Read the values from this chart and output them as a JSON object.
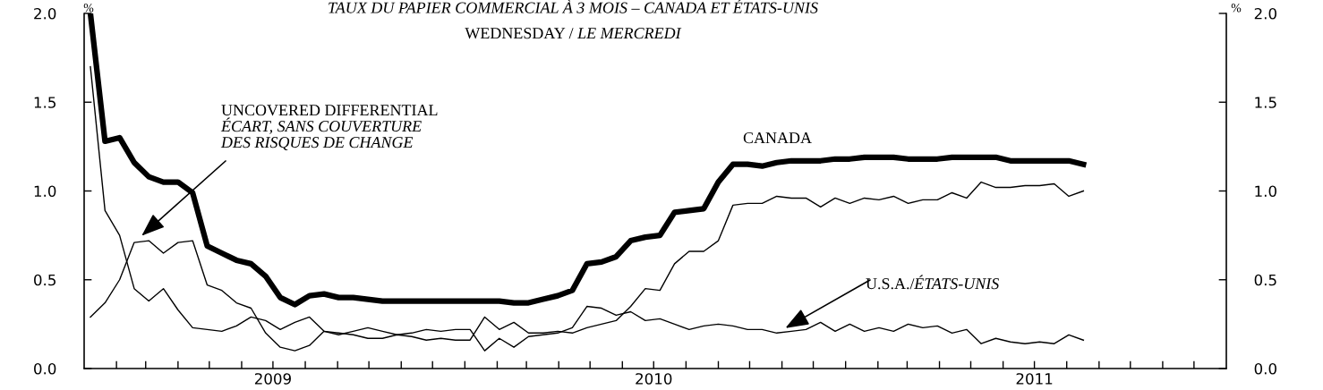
{
  "chart_data": {
    "type": "line",
    "title": "TAUX DU PAPIER COMMERCIAL À 3 MOIS – CANADA ET ÉTATS-UNIS",
    "subtitle": "WEDNESDAY / LE MERCREDI",
    "ylabel": "%",
    "y2label": "%",
    "x": [
      "2009-01-07",
      "2009-01-21",
      "2009-02-04",
      "2009-02-18",
      "2009-03-04",
      "2009-03-18",
      "2009-04-01",
      "2009-04-15",
      "2009-04-29",
      "2009-05-13",
      "2009-05-27",
      "2009-06-10",
      "2009-06-24",
      "2009-07-08",
      "2009-07-22",
      "2009-08-05",
      "2009-08-19",
      "2009-09-02",
      "2009-09-16",
      "2009-09-30",
      "2009-10-14",
      "2009-10-28",
      "2009-11-11",
      "2009-11-25",
      "2009-12-09",
      "2009-12-23",
      "2010-01-06",
      "2010-01-20",
      "2010-02-03",
      "2010-02-17",
      "2010-03-03",
      "2010-03-17",
      "2010-03-31",
      "2010-04-14",
      "2010-04-28",
      "2010-05-12",
      "2010-05-26",
      "2010-06-09",
      "2010-06-23",
      "2010-07-07",
      "2010-07-21",
      "2010-08-04",
      "2010-08-18",
      "2010-09-01",
      "2010-09-15",
      "2010-09-29",
      "2010-10-13",
      "2010-10-27",
      "2010-11-10",
      "2010-11-24",
      "2010-12-08",
      "2010-12-22",
      "2011-01-05",
      "2011-01-19",
      "2011-02-02",
      "2011-02-16",
      "2011-03-02",
      "2011-03-16",
      "2011-03-30",
      "2011-04-13",
      "2011-04-27",
      "2011-05-11",
      "2011-05-25",
      "2011-06-08",
      "2011-06-22",
      "2011-07-06",
      "2011-07-20",
      "2011-08-03",
      "2011-08-17"
    ],
    "series": [
      {
        "name": "CANADA",
        "color": "#000000",
        "values": [
          2.0,
          1.28,
          1.3,
          1.16,
          1.08,
          1.05,
          1.05,
          0.99,
          0.69,
          0.65,
          0.61,
          0.59,
          0.52,
          0.4,
          0.36,
          0.41,
          0.42,
          0.4,
          0.4,
          0.39,
          0.38,
          0.38,
          0.38,
          0.38,
          0.38,
          0.38,
          0.38,
          0.38,
          0.38,
          0.37,
          0.37,
          0.39,
          0.41,
          0.44,
          0.59,
          0.6,
          0.63,
          0.72,
          0.74,
          0.75,
          0.88,
          0.89,
          0.9,
          1.05,
          1.15,
          1.15,
          1.14,
          1.16,
          1.17,
          1.17,
          1.17,
          1.18,
          1.18,
          1.19,
          1.19,
          1.19,
          1.18,
          1.18,
          1.18,
          1.19,
          1.19,
          1.19,
          1.19,
          1.17,
          1.17,
          1.17,
          1.17,
          1.17,
          1.15
        ]
      },
      {
        "name": "U.S.A./ÉTATS-UNIS",
        "color": "#000000",
        "values": [
          1.7,
          0.89,
          0.75,
          0.45,
          0.38,
          0.45,
          0.33,
          0.23,
          0.22,
          0.21,
          0.24,
          0.29,
          0.27,
          0.22,
          0.26,
          0.29,
          0.21,
          0.19,
          0.21,
          0.23,
          0.21,
          0.19,
          0.2,
          0.22,
          0.21,
          0.22,
          0.22,
          0.1,
          0.17,
          0.12,
          0.18,
          0.19,
          0.2,
          0.23,
          0.35,
          0.34,
          0.3,
          0.32,
          0.27,
          0.28,
          0.25,
          0.22,
          0.24,
          0.25,
          0.24,
          0.22,
          0.22,
          0.2,
          0.21,
          0.22,
          0.26,
          0.21,
          0.25,
          0.21,
          0.23,
          0.21,
          0.25,
          0.23,
          0.24,
          0.2,
          0.22,
          0.14,
          0.17,
          0.15,
          0.14,
          0.15,
          0.14,
          0.19,
          0.16
        ]
      },
      {
        "name": "UNCOVERED DIFFERENTIAL\nÉCART, SANS COUVERTURE\nDES RISQUES DE CHANGE",
        "color": "#000000",
        "values": [
          0.29,
          0.37,
          0.5,
          0.71,
          0.72,
          0.65,
          0.71,
          0.72,
          0.47,
          0.44,
          0.37,
          0.34,
          0.2,
          0.12,
          0.1,
          0.13,
          0.21,
          0.2,
          0.19,
          0.17,
          0.17,
          0.19,
          0.18,
          0.16,
          0.17,
          0.16,
          0.16,
          0.29,
          0.22,
          0.26,
          0.2,
          0.2,
          0.21,
          0.2,
          0.23,
          0.25,
          0.27,
          0.35,
          0.45,
          0.44,
          0.59,
          0.66,
          0.66,
          0.72,
          0.92,
          0.93,
          0.93,
          0.97,
          0.96,
          0.96,
          0.91,
          0.96,
          0.93,
          0.96,
          0.95,
          0.97,
          0.93,
          0.95,
          0.95,
          0.99,
          0.96,
          1.05,
          1.02,
          1.02,
          1.03,
          1.03,
          1.04,
          0.97,
          1.0
        ]
      }
    ],
    "xlim": [
      "2009-01-01",
      "2012-01-01"
    ],
    "xticks": [
      {
        "value": "2009-02-01",
        "label": null
      },
      {
        "value": "2009-03-01",
        "label": null
      },
      {
        "value": "2009-04-01",
        "label": null
      },
      {
        "value": "2009-05-01",
        "label": null
      },
      {
        "value": "2009-06-01",
        "label": null
      },
      {
        "value": "2009-07-01",
        "label": "2009"
      },
      {
        "value": "2009-08-01",
        "label": null
      },
      {
        "value": "2009-09-01",
        "label": null
      },
      {
        "value": "2009-10-01",
        "label": null
      },
      {
        "value": "2009-11-01",
        "label": null
      },
      {
        "value": "2009-12-01",
        "label": null
      },
      {
        "value": "2010-01-01",
        "label": null
      },
      {
        "value": "2010-02-01",
        "label": null
      },
      {
        "value": "2010-03-01",
        "label": null
      },
      {
        "value": "2010-04-01",
        "label": null
      },
      {
        "value": "2010-05-01",
        "label": null
      },
      {
        "value": "2010-06-01",
        "label": null
      },
      {
        "value": "2010-07-01",
        "label": "2010"
      },
      {
        "value": "2010-08-01",
        "label": null
      },
      {
        "value": "2010-09-01",
        "label": null
      },
      {
        "value": "2010-10-01",
        "label": null
      },
      {
        "value": "2010-11-01",
        "label": null
      },
      {
        "value": "2010-12-01",
        "label": null
      },
      {
        "value": "2011-01-01",
        "label": null
      },
      {
        "value": "2011-02-01",
        "label": null
      },
      {
        "value": "2011-03-01",
        "label": null
      },
      {
        "value": "2011-04-01",
        "label": null
      },
      {
        "value": "2011-05-01",
        "label": null
      },
      {
        "value": "2011-06-01",
        "label": null
      },
      {
        "value": "2011-07-01",
        "label": "2011"
      },
      {
        "value": "2011-08-01",
        "label": null
      },
      {
        "value": "2011-09-01",
        "label": null
      },
      {
        "value": "2011-10-01",
        "label": null
      },
      {
        "value": "2011-11-01",
        "label": null
      },
      {
        "value": "2011-12-01",
        "label": null
      }
    ],
    "ylim": [
      0,
      2
    ],
    "yticks": [
      {
        "value": 0,
        "label": "0.0"
      },
      {
        "value": 0.5,
        "label": "0.5"
      },
      {
        "value": 1,
        "label": "1.0"
      },
      {
        "value": 1.5,
        "label": "1.5"
      },
      {
        "value": 2,
        "label": "2.0"
      }
    ],
    "y2lim": [
      0,
      2
    ],
    "y2ticks": [
      {
        "value": 0,
        "label": "0.0"
      },
      {
        "value": 0.5,
        "label": "0.5"
      },
      {
        "value": 1,
        "label": "1.0"
      },
      {
        "value": 1.5,
        "label": "1.5"
      },
      {
        "value": 2,
        "label": "2.0"
      }
    ],
    "grid": false,
    "legend": false,
    "marker": "none",
    "line_style": "solid"
  }
}
